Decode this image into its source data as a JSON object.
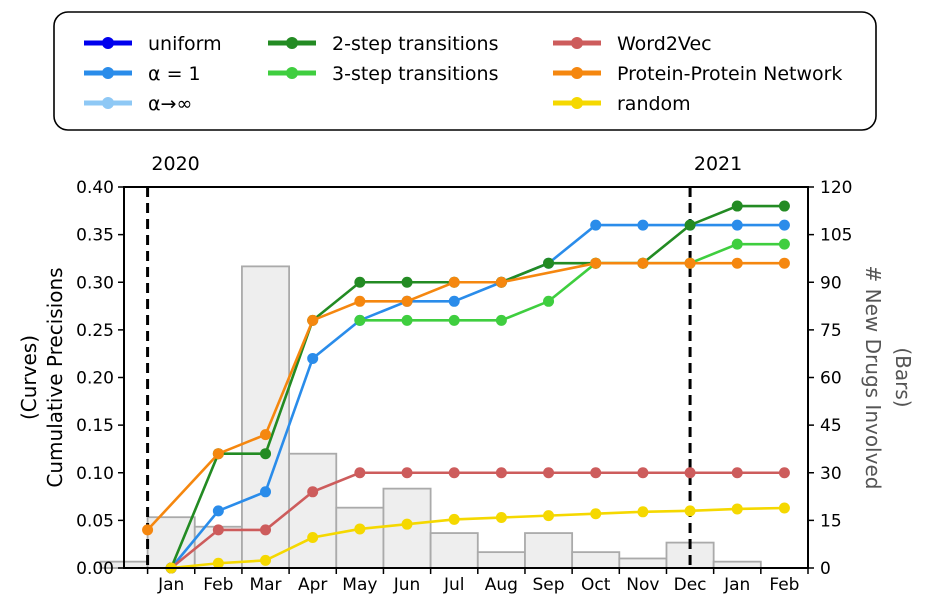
{
  "chart_data": {
    "type": "line",
    "title": "",
    "categories": [
      "Jan",
      "Feb",
      "Mar",
      "Apr",
      "May",
      "Jun",
      "Jul",
      "Aug",
      "Sep",
      "Oct",
      "Nov",
      "Dec",
      "Jan",
      "Feb"
    ],
    "year_markers": [
      {
        "label": "2020",
        "position": 0
      },
      {
        "label": "2021",
        "position": 11.5
      }
    ],
    "ylabel_left": [
      "(Curves)",
      "Cumulative Precisions"
    ],
    "ylabel_right": [
      "# New Drugs Involved",
      "(Bars)"
    ],
    "ylim_left": [
      0,
      0.4
    ],
    "ylim_right": [
      0,
      120
    ],
    "yticks_left": [
      "0.00",
      "0.05",
      "0.10",
      "0.15",
      "0.20",
      "0.25",
      "0.30",
      "0.35",
      "0.40"
    ],
    "yticks_right": [
      "0",
      "15",
      "30",
      "45",
      "60",
      "75",
      "90",
      "105",
      "120"
    ],
    "bars": {
      "x": [
        -0.5,
        0.5,
        1.5,
        2.5,
        3.5,
        4.5,
        5.5,
        6.5,
        7.5,
        8.5,
        9.5,
        10.5,
        11.5,
        12.5
      ],
      "values": [
        2,
        16,
        13,
        95,
        36,
        19,
        25,
        11,
        5,
        11,
        5,
        3,
        8,
        2
      ]
    },
    "series": [
      {
        "name": "uniform",
        "color": "#0000ee",
        "x": [
          0.5
        ],
        "values": [
          0.0
        ]
      },
      {
        "name": "α = 1",
        "color": "#2a8cea",
        "x": [
          0.5,
          1.5,
          2.5,
          3.5,
          4.5,
          5.5,
          6.5,
          7.5,
          8.5,
          9.5,
          10.5,
          11.5,
          12.5,
          13.5
        ],
        "values": [
          0.0,
          0.06,
          0.08,
          0.22,
          0.26,
          0.28,
          0.28,
          0.3,
          0.32,
          0.36,
          0.36,
          0.36,
          0.36,
          0.36
        ]
      },
      {
        "name": "α→∞",
        "color": "#8ec8f5",
        "x": [],
        "values": []
      },
      {
        "name": "2-step transitions",
        "color": "#238b23",
        "x": [
          0.5,
          1.5,
          2.5,
          3.5,
          4.5,
          5.5,
          6.5,
          7.5,
          8.5,
          9.5,
          10.5,
          11.5,
          12.5,
          13.5
        ],
        "values": [
          0.0,
          0.12,
          0.12,
          0.26,
          0.3,
          0.3,
          0.3,
          0.3,
          0.32,
          0.32,
          0.32,
          0.36,
          0.38,
          0.38
        ]
      },
      {
        "name": "3-step transitions",
        "color": "#3fce3f",
        "x": [
          4.5,
          5.5,
          6.5,
          7.5,
          8.5,
          9.5,
          10.5,
          11.5,
          12.5,
          13.5
        ],
        "values": [
          0.26,
          0.26,
          0.26,
          0.26,
          0.28,
          0.32,
          0.32,
          0.32,
          0.34,
          0.34
        ]
      },
      {
        "name": "Word2Vec",
        "color": "#cd5c5c",
        "x": [
          0.5,
          1.5,
          2.5,
          3.5,
          4.5,
          5.5,
          6.5,
          7.5,
          8.5,
          9.5,
          10.5,
          11.5,
          12.5,
          13.5
        ],
        "values": [
          0.0,
          0.04,
          0.04,
          0.08,
          0.1,
          0.1,
          0.1,
          0.1,
          0.1,
          0.1,
          0.1,
          0.1,
          0.1,
          0.1
        ]
      },
      {
        "name": "Protein-Protein Network",
        "color": "#f5870f",
        "x": [
          0.0,
          1.5,
          2.5,
          3.5,
          4.5,
          5.5,
          6.5,
          7.5,
          9.5,
          10.5,
          11.5,
          12.5,
          13.5
        ],
        "values": [
          0.04,
          0.12,
          0.14,
          0.26,
          0.28,
          0.28,
          0.3,
          0.3,
          0.32,
          0.32,
          0.32,
          0.32,
          0.32
        ]
      },
      {
        "name": "random",
        "color": "#f5d800",
        "x": [
          0.5,
          1.5,
          2.5,
          3.5,
          4.5,
          5.5,
          6.5,
          7.5,
          8.5,
          9.5,
          10.5,
          11.5,
          12.5,
          13.5
        ],
        "values": [
          0.0,
          0.005,
          0.008,
          0.032,
          0.041,
          0.046,
          0.051,
          0.053,
          0.055,
          0.057,
          0.059,
          0.06,
          0.062,
          0.063
        ]
      }
    ],
    "grid": false,
    "legend_placement": "top"
  }
}
